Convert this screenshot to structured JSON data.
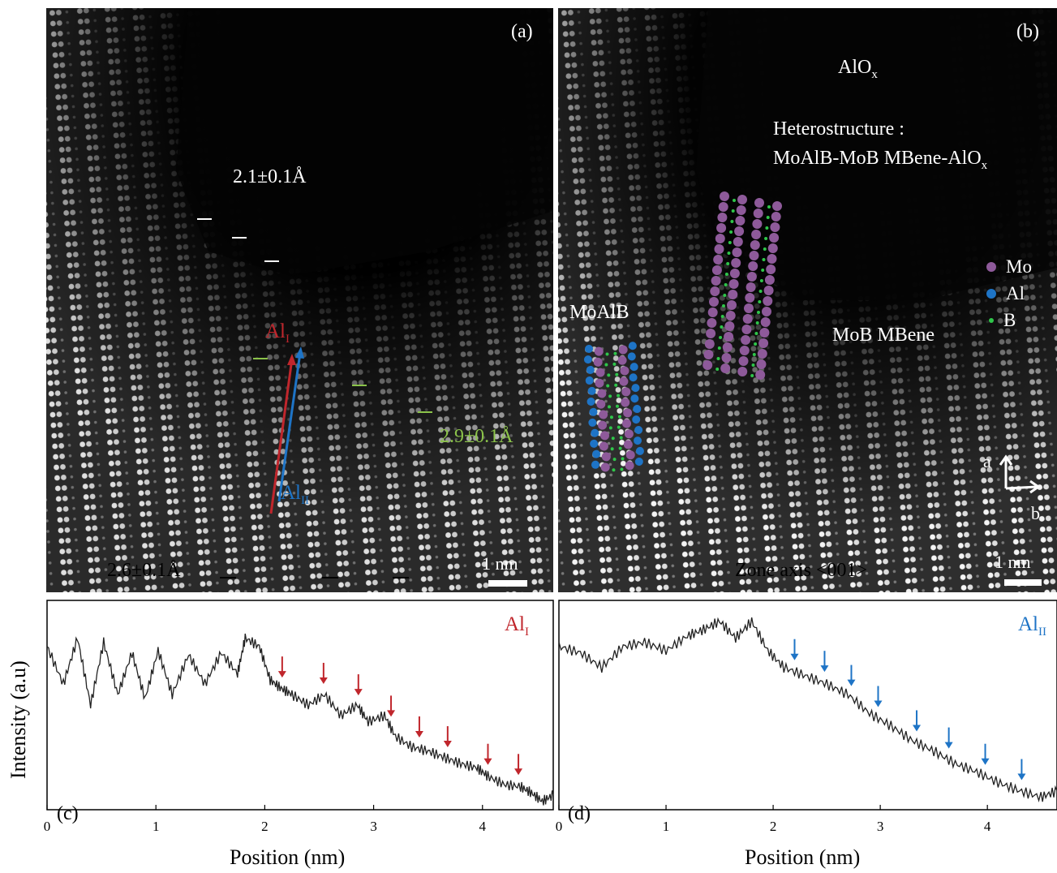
{
  "panel_a": {
    "label": "(a)",
    "spacing_top": "2.1±0.1Å",
    "spacing_middle": "2.9±0.1Å",
    "spacing_bottom": "2.6±0.1Å",
    "line_label_1": {
      "base": "Al",
      "sub": "I"
    },
    "line_label_2": {
      "base": "Al",
      "sub": "II"
    },
    "scale_bar": "1 nm"
  },
  "panel_b": {
    "label": "(b)",
    "oxide_label": {
      "base": "AlO",
      "sub": "x"
    },
    "heterostructure_line1": "Heterostructure :",
    "heterostructure_line2": {
      "base": "MoAlB-MoB MBene-AlO",
      "sub": "x"
    },
    "legend": [
      {
        "name": "Mo",
        "color": "#8e5a9a"
      },
      {
        "name": "Al",
        "color": "#1e74c6"
      },
      {
        "name": "B",
        "color": "#2fc64a"
      }
    ],
    "phase_left": "MoAlB",
    "phase_right": "MoB MBene",
    "axis_a": "a",
    "axis_b": "b",
    "zone_axis": "Zone axis  <001>",
    "scale_bar": "1 nm"
  },
  "chart_data": [
    {
      "type": "line",
      "panel": "(c)",
      "label": {
        "base": "Al",
        "sub": "I"
      },
      "xlabel": "Position (nm)",
      "ylabel": "Intensity (a.u)",
      "xlim": [
        0,
        4.65
      ],
      "ylim": [
        0,
        1
      ],
      "xticks": [
        0,
        1,
        2,
        3,
        4
      ],
      "arrow_positions": [
        2.16,
        2.54,
        2.86,
        3.16,
        3.42,
        3.68,
        4.05,
        4.33
      ],
      "arrow_color": "#c0262c",
      "series": [
        {
          "x": [
            0,
            0.15,
            0.28,
            0.4,
            0.52,
            0.65,
            0.78,
            0.9,
            1.02,
            1.15,
            1.3,
            1.45,
            1.6,
            1.75,
            1.82,
            1.95,
            2.05,
            2.15,
            2.25,
            2.4,
            2.55,
            2.7,
            2.85,
            2.95,
            3.1,
            3.2,
            3.35,
            3.5,
            3.65,
            3.8,
            3.95,
            4.05,
            4.2,
            4.35,
            4.45,
            4.55,
            4.65
          ],
          "y": [
            0.78,
            0.6,
            0.82,
            0.5,
            0.8,
            0.55,
            0.75,
            0.53,
            0.76,
            0.55,
            0.74,
            0.6,
            0.75,
            0.65,
            0.82,
            0.78,
            0.62,
            0.58,
            0.55,
            0.5,
            0.55,
            0.45,
            0.5,
            0.42,
            0.45,
            0.35,
            0.3,
            0.28,
            0.25,
            0.22,
            0.2,
            0.16,
            0.12,
            0.11,
            0.08,
            0.04,
            0.07
          ]
        }
      ]
    },
    {
      "type": "line",
      "panel": "(d)",
      "label": {
        "base": "Al",
        "sub": "II"
      },
      "xlabel": "Position (nm)",
      "ylabel": "",
      "xlim": [
        0,
        4.65
      ],
      "ylim": [
        0,
        1
      ],
      "xticks": [
        0,
        1,
        2,
        3,
        4
      ],
      "arrow_positions": [
        2.2,
        2.48,
        2.73,
        2.98,
        3.34,
        3.64,
        3.98,
        4.32
      ],
      "arrow_color": "#1e74c6",
      "series": [
        {
          "x": [
            0,
            0.2,
            0.4,
            0.6,
            0.8,
            1.0,
            1.2,
            1.35,
            1.5,
            1.65,
            1.8,
            1.95,
            2.1,
            2.3,
            2.5,
            2.7,
            2.9,
            3.1,
            3.3,
            3.5,
            3.7,
            3.9,
            4.1,
            4.3,
            4.5,
            4.65
          ],
          "y": [
            0.78,
            0.75,
            0.68,
            0.78,
            0.8,
            0.76,
            0.83,
            0.86,
            0.9,
            0.82,
            0.9,
            0.76,
            0.68,
            0.64,
            0.6,
            0.55,
            0.46,
            0.4,
            0.33,
            0.28,
            0.22,
            0.18,
            0.13,
            0.09,
            0.06,
            0.09
          ]
        }
      ]
    }
  ]
}
